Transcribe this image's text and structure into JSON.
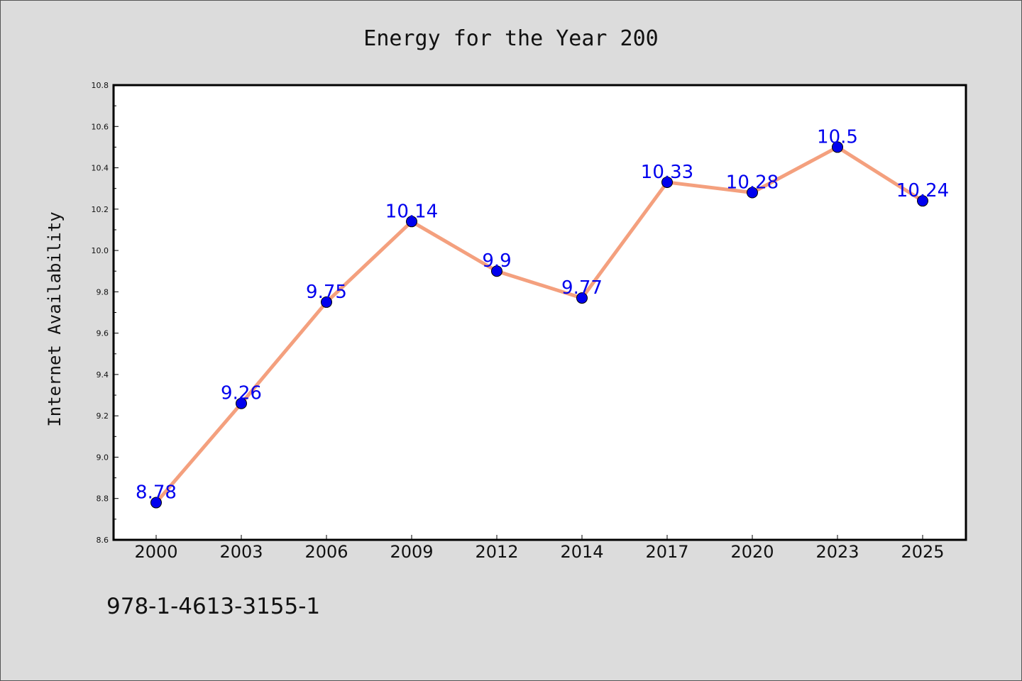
{
  "chart_data": {
    "type": "line",
    "title": "Energy for the Year 200",
    "xlabel": "",
    "ylabel": "Internet Availability",
    "categories": [
      "2000",
      "2003",
      "2006",
      "2009",
      "2012",
      "2014",
      "2017",
      "2020",
      "2023",
      "2025"
    ],
    "series": [
      {
        "values": [
          8.78,
          9.26,
          9.75,
          10.14,
          9.9,
          9.77,
          10.33,
          10.28,
          10.5,
          10.24
        ],
        "data_labels": [
          "8.78",
          "9.26",
          "9.75",
          "10.14",
          "9.9",
          "9.77",
          "10.33",
          "10.28",
          "10.5",
          "10.24"
        ],
        "line_color": "#f4a07e",
        "marker_color": "#0000ee",
        "label_color": "#0000ee"
      }
    ],
    "ylim": [
      8.6,
      10.8
    ],
    "yticks": [
      "8.6",
      "8.8",
      "9.0",
      "9.2",
      "9.4",
      "9.6",
      "9.8",
      "10.0",
      "10.2",
      "10.4",
      "10.6",
      "10.8"
    ],
    "grid": false,
    "legend": "none"
  },
  "footer": {
    "text": "978-1-4613-3155-1"
  },
  "colors": {
    "background": "#dcdcdc",
    "plot_background": "#ffffff",
    "axis": "#000000"
  }
}
